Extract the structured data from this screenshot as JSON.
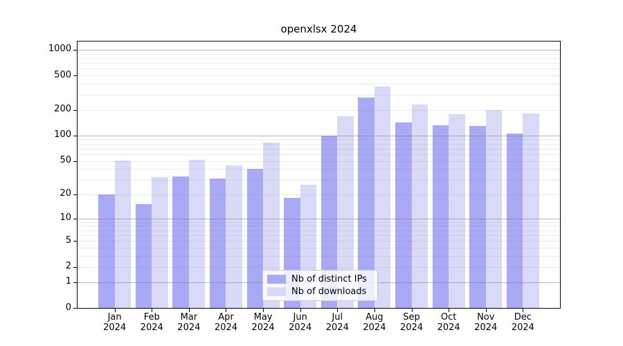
{
  "title": "openxlsx 2024",
  "chart_data": {
    "type": "bar",
    "title": "openxlsx 2024",
    "categories": [
      "Jan",
      "Feb",
      "Mar",
      "Apr",
      "May",
      "Jun",
      "Jul",
      "Aug",
      "Sep",
      "Oct",
      "Nov",
      "Dec"
    ],
    "category_year": "2024",
    "series": [
      {
        "name": "Nb of distinct IPs",
        "color": "#a9a9f5",
        "values": [
          20,
          15,
          33,
          31,
          40,
          18,
          100,
          280,
          142,
          133,
          129,
          106
        ]
      },
      {
        "name": "Nb of downloads",
        "color": "#d9d9f8",
        "values": [
          51,
          32,
          52,
          44,
          83,
          26,
          167,
          375,
          230,
          178,
          198,
          182
        ]
      }
    ],
    "yscale": "log1p",
    "ylim": [
      0,
      1230
    ],
    "xlabel": "",
    "ylabel": "",
    "y_tick_labels": [
      0,
      1,
      2,
      5,
      10,
      20,
      50,
      100,
      200,
      500,
      1000
    ],
    "y_major_gridlines": [
      1,
      10,
      100,
      1000
    ],
    "y_minor_gridlines": [
      2,
      3,
      4,
      5,
      6,
      7,
      8,
      9,
      20,
      30,
      40,
      50,
      60,
      70,
      80,
      90,
      200,
      300,
      400,
      500,
      600,
      700,
      800,
      900
    ],
    "grid": true,
    "legend_position": "bottom-center",
    "colors": {
      "major_grid": "rgba(128,128,128,0.55)",
      "minor_grid": "rgba(128,128,128,0.16)",
      "spine": "#000000",
      "text": "#000000",
      "background": "#ffffff"
    }
  }
}
